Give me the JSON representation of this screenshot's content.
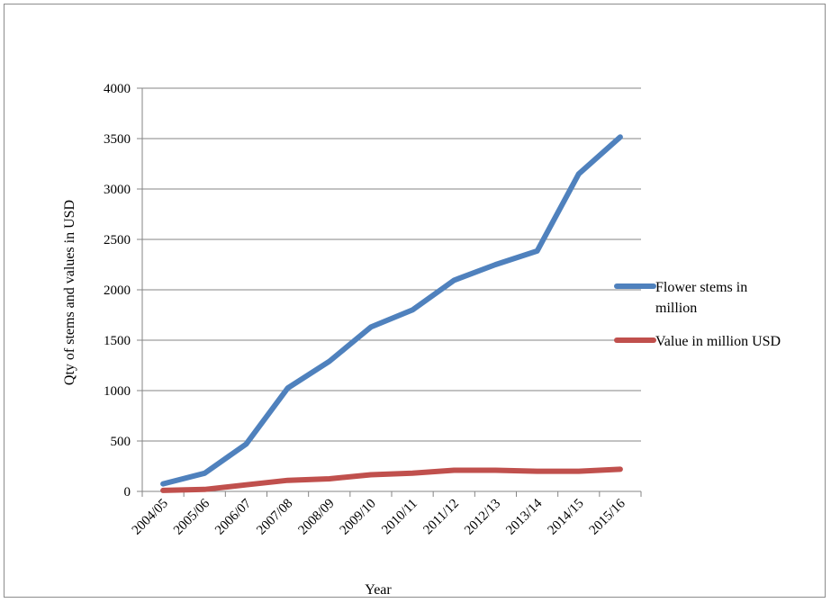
{
  "chart_data": {
    "type": "line",
    "title": "",
    "xlabel": "Year",
    "ylabel": "Qty of stems and values in USD",
    "categories": [
      "2004/05",
      "2005/06",
      "2006/07",
      "2007/08",
      "2008/09",
      "2009/10",
      "2010/11",
      "2011/12",
      "2012/13",
      "2013/14",
      "2014/15",
      "2015/16"
    ],
    "ylim": [
      0,
      4000
    ],
    "yticks": [
      0,
      500,
      1000,
      1500,
      2000,
      2500,
      3000,
      3500,
      4000
    ],
    "grid": "horizontal",
    "legend_position": "right",
    "series": [
      {
        "name": "Flower stems in million",
        "legend_lines": [
          "Flower stems in",
          "million"
        ],
        "color": "#4F81BD",
        "values": [
          75,
          180,
          470,
          1025,
          1290,
          1630,
          1800,
          2095,
          2250,
          2385,
          3150,
          3515
        ]
      },
      {
        "name": "Value in million USD",
        "legend_lines": [
          "Value in million USD"
        ],
        "color": "#C0504D",
        "values": [
          10,
          20,
          65,
          110,
          125,
          165,
          180,
          210,
          210,
          200,
          200,
          220
        ]
      }
    ]
  }
}
